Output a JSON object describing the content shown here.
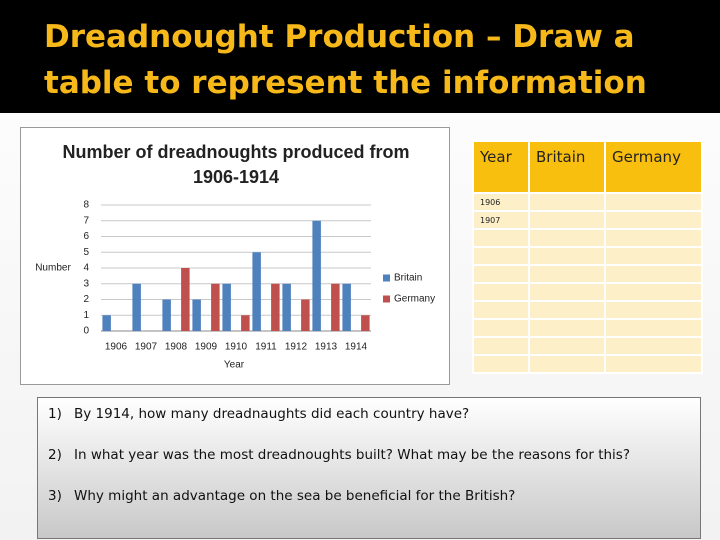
{
  "slide_title": "Dreadnought Production – Draw a table to represent the information",
  "chart_data": {
    "type": "bar",
    "title": "Number of dreadnoughts produced from 1906-1914",
    "x_label": "Year",
    "y_label": "Number",
    "categories": [
      "1906",
      "1907",
      "1908",
      "1909",
      "1910",
      "1911",
      "1912",
      "1913",
      "1914"
    ],
    "series": [
      {
        "name": "Britain",
        "color": "#4f81bd",
        "values": [
          1,
          3,
          2,
          2,
          3,
          5,
          3,
          7,
          3
        ]
      },
      {
        "name": "Germany",
        "color": "#c0504d",
        "values": [
          0,
          0,
          4,
          3,
          1,
          3,
          2,
          3,
          1
        ]
      }
    ],
    "ylim": [
      0,
      8
    ],
    "yticks": [
      0,
      1,
      2,
      3,
      4,
      5,
      6,
      7,
      8
    ],
    "grid": true,
    "legend": "right"
  },
  "table": {
    "header": [
      "Year",
      "Britain",
      "Germany"
    ],
    "row_labels": [
      "1906",
      "1907"
    ]
  },
  "questions": [
    {
      "marker": "1)",
      "text": "By 1914, how many dreadnaughts did each country have?"
    },
    {
      "marker": "2)",
      "text": "In what year was the most dreadnoughts built? What may be the reasons for this?"
    },
    {
      "marker": "3)",
      "text": "Why might an advantage on the sea be beneficial for the British?"
    }
  ]
}
